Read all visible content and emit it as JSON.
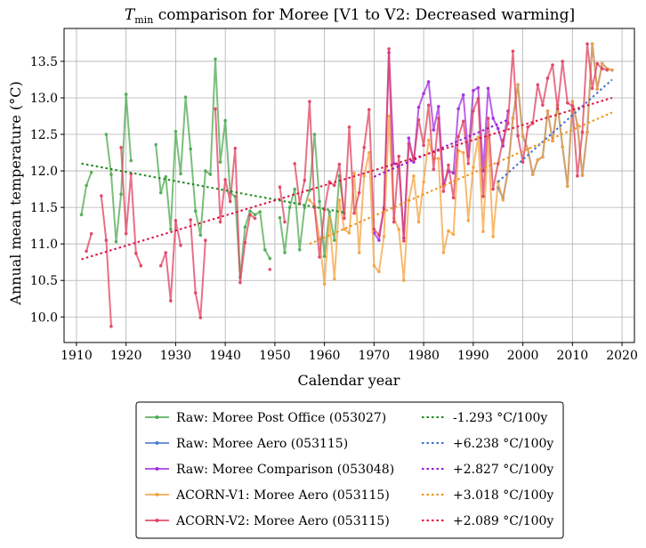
{
  "chart_data": {
    "type": "line",
    "title": "T",
    "title_subscript": "min",
    "title_rest": " comparison for Moree   [V1 to V2: Decreased warming]",
    "xlabel": "Calendar year",
    "ylabel": "Annual mean temperature (°C)",
    "xlim": [
      1907.5,
      2022.5
    ],
    "ylim": [
      9.65,
      13.95
    ],
    "xticks": [
      1910,
      1920,
      1930,
      1940,
      1950,
      1960,
      1970,
      1980,
      1990,
      2000,
      2010,
      2020
    ],
    "xtick_labels": [
      "1910",
      "1920",
      "1930",
      "1940",
      "1950",
      "1960",
      "1970",
      "1980",
      "1990",
      "2000",
      "2010",
      "2020"
    ],
    "yticks": [
      10.0,
      10.5,
      11.0,
      11.5,
      12.0,
      12.5,
      13.0,
      13.5
    ],
    "ytick_labels": [
      "10.0",
      "10.5",
      "11.0",
      "11.5",
      "12.0",
      "12.5",
      "13.0",
      "13.5"
    ],
    "grid": true,
    "legend_position": "below",
    "series": [
      {
        "name": "Raw: Moree Post Office (053027)",
        "color": "#4daa50",
        "kind": "raw",
        "x": [
          1911,
          1912,
          1913,
          1914,
          1915,
          1916,
          1917,
          1918,
          1919,
          1920,
          1921,
          1922,
          1923,
          1924,
          1925,
          1926,
          1927,
          1928,
          1929,
          1930,
          1931,
          1932,
          1933,
          1934,
          1935,
          1936,
          1937,
          1938,
          1939,
          1940,
          1941,
          1942,
          1943,
          1944,
          1945,
          1946,
          1947,
          1948,
          1949,
          1950,
          1951,
          1952,
          1953,
          1954,
          1955,
          1956,
          1957,
          1958,
          1959,
          1960,
          1961,
          1962,
          1963,
          1964
        ],
        "y": [
          11.4,
          11.8,
          11.98,
          null,
          null,
          12.5,
          11.95,
          11.03,
          11.68,
          13.05,
          12.14,
          null,
          null,
          null,
          null,
          12.36,
          11.7,
          11.92,
          11.2,
          12.54,
          11.96,
          13.01,
          12.3,
          11.45,
          11.12,
          12.0,
          11.95,
          13.53,
          12.12,
          12.69,
          11.7,
          11.65,
          10.54,
          11.23,
          11.45,
          11.4,
          11.44,
          10.92,
          10.8,
          null,
          11.36,
          10.88,
          11.5,
          11.75,
          10.92,
          11.5,
          11.73,
          12.5,
          11.58,
          10.83,
          11.44,
          11.05,
          11.93,
          11.42
        ]
      },
      {
        "name": "Raw: Moree Aero (053115)",
        "color": "#4a7bd0",
        "kind": "raw",
        "x": [
          1995,
          1996,
          1997,
          1998,
          1999,
          2000,
          2001,
          2002,
          2003,
          2004,
          2005,
          2006,
          2007,
          2008,
          2009,
          2010,
          2011,
          2012,
          2013,
          2014,
          2015,
          2016,
          2017,
          2018
        ],
        "y": [
          11.77,
          11.63,
          12.0,
          12.72,
          13.18,
          12.47,
          12.3,
          11.95,
          12.15,
          12.19,
          12.82,
          12.41,
          12.9,
          12.33,
          11.79,
          12.95,
          12.63,
          11.94,
          12.53,
          13.74,
          13.12,
          13.47,
          13.4,
          13.38
        ]
      },
      {
        "name": "Raw: Moree Comparison (053048)",
        "color": "#a22ee0",
        "kind": "raw",
        "x": [
          1970,
          1971,
          1972,
          1973,
          1974,
          1975,
          1976,
          1977,
          1978,
          1979,
          1980,
          1981,
          1982,
          1983,
          1984,
          1985,
          1986,
          1987,
          1988,
          1989,
          1990,
          1991,
          1992,
          1993,
          1994,
          1995,
          1996,
          1997
        ],
        "y": [
          11.15,
          11.05,
          11.5,
          13.62,
          12.1,
          12.08,
          11.08,
          12.45,
          12.12,
          12.87,
          13.06,
          13.22,
          12.56,
          12.88,
          11.82,
          12.0,
          11.97,
          12.85,
          13.04,
          12.2,
          13.1,
          13.14,
          12.0,
          13.13,
          12.72,
          12.58,
          12.34,
          12.82
        ]
      },
      {
        "name": "ACORN-V1: Moree Aero (053115)",
        "color": "#f5a340",
        "kind": "raw",
        "x": [
          1957,
          1958,
          1959,
          1960,
          1961,
          1962,
          1963,
          1964,
          1965,
          1966,
          1967,
          1968,
          1969,
          1970,
          1971,
          1972,
          1973,
          1974,
          1975,
          1976,
          1977,
          1978,
          1979,
          1980,
          1981,
          1982,
          1983,
          1984,
          1985,
          1986,
          1987,
          1988,
          1989,
          1990,
          1991,
          1992,
          1993,
          1994,
          1995,
          1996,
          1997,
          1998,
          1999,
          2000,
          2001,
          2002,
          2003,
          2004,
          2005,
          2006,
          2007,
          2008,
          2009,
          2010,
          2011,
          2012,
          2013,
          2014,
          2015,
          2016,
          2017,
          2018
        ],
        "y": [
          11.6,
          11.52,
          11.07,
          10.45,
          11.35,
          10.52,
          11.6,
          11.2,
          11.15,
          11.97,
          10.88,
          11.93,
          12.25,
          10.7,
          10.62,
          11.1,
          12.75,
          11.35,
          11.2,
          10.5,
          11.6,
          11.93,
          11.3,
          11.85,
          12.42,
          12.17,
          12.17,
          10.88,
          11.18,
          11.13,
          12.28,
          12.25,
          11.32,
          12.05,
          12.46,
          11.17,
          12.46,
          11.1,
          11.85,
          11.6,
          12.0,
          12.72,
          13.18,
          12.47,
          12.3,
          11.95,
          12.15,
          12.19,
          12.82,
          12.41,
          12.9,
          12.33,
          11.79,
          12.95,
          12.63,
          11.94,
          12.53,
          13.74,
          13.12,
          13.47,
          13.4,
          13.38
        ]
      },
      {
        "name": "ACORN-V2: Moree Aero (053115)",
        "color": "#e0405f",
        "kind": "raw",
        "x": [
          1911,
          1912,
          1913,
          1914,
          1915,
          1916,
          1917,
          1918,
          1919,
          1920,
          1921,
          1922,
          1923,
          1924,
          1925,
          1926,
          1927,
          1928,
          1929,
          1930,
          1931,
          1932,
          1933,
          1934,
          1935,
          1936,
          1937,
          1938,
          1939,
          1940,
          1941,
          1942,
          1943,
          1944,
          1945,
          1946,
          1947,
          1948,
          1949,
          1950,
          1951,
          1952,
          1953,
          1954,
          1955,
          1956,
          1957,
          1958,
          1959,
          1960,
          1961,
          1962,
          1963,
          1964,
          1965,
          1966,
          1967,
          1968,
          1969,
          1970,
          1971,
          1972,
          1973,
          1974,
          1975,
          1976,
          1977,
          1978,
          1979,
          1980,
          1981,
          1982,
          1983,
          1984,
          1985,
          1986,
          1987,
          1988,
          1989,
          1990,
          1991,
          1992,
          1993,
          1994,
          1995,
          1996,
          1997,
          1998,
          1999,
          2000,
          2001,
          2002,
          2003,
          2004,
          2005,
          2006,
          2007,
          2008,
          2009,
          2010,
          2011,
          2012,
          2013,
          2014,
          2015,
          2016,
          2017,
          2018
        ],
        "y": [
          null,
          10.9,
          11.14,
          null,
          11.66,
          11.05,
          9.87,
          null,
          12.32,
          11.14,
          11.96,
          10.87,
          10.7,
          null,
          null,
          null,
          10.7,
          10.88,
          10.22,
          11.32,
          10.98,
          null,
          11.33,
          10.33,
          9.99,
          11.05,
          null,
          12.85,
          11.3,
          11.88,
          11.58,
          12.31,
          10.47,
          11.02,
          11.4,
          11.35,
          null,
          null,
          10.65,
          null,
          11.78,
          11.3,
          null,
          12.1,
          11.55,
          11.87,
          12.95,
          11.5,
          10.82,
          11.47,
          11.85,
          11.8,
          12.09,
          11.35,
          12.6,
          11.42,
          11.7,
          12.32,
          12.84,
          11.2,
          11.12,
          11.48,
          13.67,
          11.3,
          12.2,
          11.04,
          12.37,
          12.15,
          12.7,
          12.35,
          12.9,
          12.02,
          12.72,
          11.72,
          12.08,
          11.63,
          12.47,
          12.68,
          12.1,
          12.82,
          12.99,
          11.65,
          12.72,
          11.75,
          12.1,
          12.42,
          12.65,
          13.64,
          12.48,
          12.12,
          12.6,
          12.65,
          13.18,
          12.9,
          13.27,
          13.45,
          12.85,
          13.5,
          12.93,
          12.89,
          11.93,
          12.53,
          13.74,
          13.13,
          13.47,
          13.4,
          13.38,
          null
        ]
      }
    ],
    "trends": [
      {
        "label": "-1.293 °C/100y",
        "color": "#1a8a1a",
        "x": [
          1911,
          1964
        ],
        "y": [
          12.1,
          11.43
        ]
      },
      {
        "label": "+6.238 °C/100y",
        "color": "#3d6fd6",
        "x": [
          1995,
          2018
        ],
        "y": [
          11.85,
          13.25
        ]
      },
      {
        "label": "+2.827 °C/100y",
        "color": "#9a10d0",
        "x": [
          1970,
          1997
        ],
        "y": [
          11.92,
          12.7
        ]
      },
      {
        "label": "+3.018 °C/100y",
        "color": "#f09010",
        "x": [
          1957,
          2018
        ],
        "y": [
          11.0,
          12.8
        ]
      },
      {
        "label": "+2.089 °C/100y",
        "color": "#e01040",
        "x": [
          1911,
          2018
        ],
        "y": [
          10.79,
          13.0
        ]
      }
    ]
  }
}
